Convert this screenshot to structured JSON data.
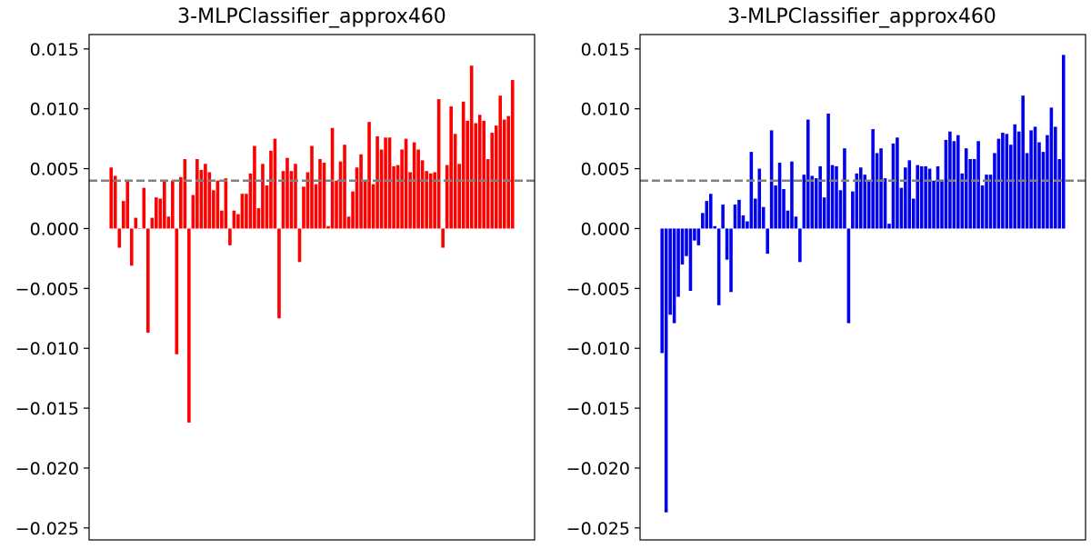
{
  "chart_data": [
    {
      "type": "bar",
      "title": "3-MLPClassifier_approx460",
      "xlabel": "",
      "ylabel": "",
      "ylim": [
        -0.026,
        0.0162
      ],
      "yticks": [
        0.015,
        0.01,
        0.005,
        0.0,
        -0.005,
        -0.01,
        -0.015,
        -0.02,
        -0.025
      ],
      "ytick_labels": [
        "0.015",
        "0.010",
        "0.005",
        "0.000",
        "−0.005",
        "−0.010",
        "−0.015",
        "−0.020",
        "−0.025"
      ],
      "reference_line": 0.004,
      "reference_line_color": "#808080",
      "bar_color": "#ff0000",
      "values": [
        0.0051,
        0.0044,
        -0.0016,
        0.0023,
        0.0041,
        -0.0031,
        0.0009,
        0.0,
        0.0034,
        -0.0087,
        0.0009,
        0.0026,
        0.0025,
        0.0041,
        0.001,
        0.004,
        -0.0105,
        0.0043,
        0.0058,
        -0.0162,
        0.0028,
        0.0058,
        0.0049,
        0.0054,
        0.0047,
        0.0032,
        0.004,
        0.0015,
        0.0042,
        -0.0014,
        0.0015,
        0.0012,
        0.0029,
        0.0029,
        0.0046,
        0.0069,
        0.0017,
        0.0054,
        0.0036,
        0.0065,
        0.0075,
        -0.0075,
        0.0048,
        0.0059,
        0.0048,
        0.0054,
        -0.0028,
        0.0035,
        0.0047,
        0.0069,
        0.0037,
        0.0058,
        0.0055,
        0.0002,
        0.0084,
        0.004,
        0.0056,
        0.007,
        0.001,
        0.0031,
        0.0051,
        0.0062,
        0.004,
        0.0089,
        0.0037,
        0.0077,
        0.0066,
        0.0076,
        0.0076,
        0.0052,
        0.0053,
        0.0066,
        0.0075,
        0.0047,
        0.0072,
        0.0066,
        0.0057,
        0.0048,
        0.0046,
        0.0047,
        0.0108,
        -0.0016,
        0.0053,
        0.0102,
        0.0079,
        0.0054,
        0.0106,
        0.009,
        0.0136,
        0.0088,
        0.0095,
        0.009,
        0.0058,
        0.008,
        0.0086,
        0.0111,
        0.0091,
        0.0094,
        0.0124
      ]
    },
    {
      "type": "bar",
      "title": "3-MLPClassifier_approx460",
      "xlabel": "",
      "ylabel": "",
      "ylim": [
        -0.026,
        0.0162
      ],
      "yticks": [
        0.015,
        0.01,
        0.005,
        0.0,
        -0.005,
        -0.01,
        -0.015,
        -0.02,
        -0.025
      ],
      "ytick_labels": [
        "0.015",
        "0.010",
        "0.005",
        "0.000",
        "−0.005",
        "−0.010",
        "−0.015",
        "−0.020",
        "−0.025"
      ],
      "reference_line": 0.004,
      "reference_line_color": "#808080",
      "bar_color": "#0000ee",
      "values": [
        -0.0104,
        -0.0237,
        -0.0072,
        -0.0079,
        -0.0057,
        -0.003,
        -0.0023,
        -0.0052,
        -0.001,
        -0.0014,
        0.0013,
        0.0023,
        0.0029,
        0.0002,
        -0.0064,
        0.002,
        -0.0026,
        -0.0053,
        0.002,
        0.0024,
        0.0011,
        0.0006,
        0.0064,
        0.0025,
        0.005,
        0.0018,
        -0.0021,
        0.0082,
        0.0036,
        0.0055,
        0.0033,
        0.0015,
        0.0056,
        0.001,
        -0.0028,
        0.0045,
        0.0091,
        0.0044,
        0.0042,
        0.0052,
        0.0026,
        0.0096,
        0.0053,
        0.0052,
        0.0032,
        0.0067,
        -0.0079,
        0.0031,
        0.0046,
        0.0051,
        0.0045,
        0.004,
        0.0083,
        0.0063,
        0.0067,
        0.0042,
        0.0004,
        0.0071,
        0.0076,
        0.0034,
        0.0051,
        0.0057,
        0.0025,
        0.0053,
        0.0052,
        0.0052,
        0.005,
        0.004,
        0.0052,
        0.0041,
        0.0074,
        0.0081,
        0.0073,
        0.0078,
        0.0046,
        0.0067,
        0.0058,
        0.0058,
        0.0073,
        0.0036,
        0.0045,
        0.0045,
        0.0063,
        0.0075,
        0.008,
        0.0079,
        0.007,
        0.0087,
        0.0081,
        0.0111,
        0.0063,
        0.0082,
        0.0085,
        0.0072,
        0.0064,
        0.0078,
        0.0101,
        0.0085,
        0.0058,
        0.0145
      ]
    }
  ]
}
